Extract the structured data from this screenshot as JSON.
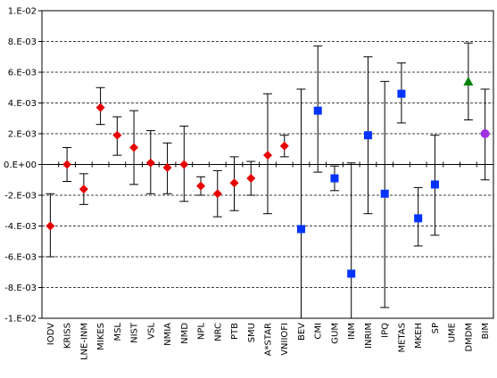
{
  "chart_data": {
    "type": "scatter",
    "ylim": [
      -0.01,
      0.01
    ],
    "y_ticks": [
      {
        "value": 0.01,
        "label": "1.E-02"
      },
      {
        "value": 0.008,
        "label": "8.E-03"
      },
      {
        "value": 0.006,
        "label": "6.E-03"
      },
      {
        "value": 0.004,
        "label": "4.E-03"
      },
      {
        "value": 0.002,
        "label": "2.E-03"
      },
      {
        "value": 0.0,
        "label": "0.E+00"
      },
      {
        "value": -0.002,
        "label": "-2.E-03"
      },
      {
        "value": -0.004,
        "label": "-4.E-03"
      },
      {
        "value": -0.006,
        "label": "-6.E-03"
      },
      {
        "value": -0.008,
        "label": "-8.E-03"
      },
      {
        "value": -0.01,
        "label": "-1.E-02"
      }
    ],
    "grid": "horizontal dashed",
    "legend": "none",
    "categories": [
      "IODV",
      "KRISS",
      "LNE-INM",
      "MIKES",
      "MSL",
      "NIST",
      "VSL",
      "NMIA",
      "NMD",
      "NPL",
      "NRC",
      "PTB",
      "SMU",
      "A*STAR",
      "VNIIOFI",
      "BEV",
      "CMI",
      "GUM",
      "INM",
      "INRIM",
      "IPQ",
      "METAS",
      "MKEH",
      "SP",
      "UME",
      "DMDM",
      "BIM"
    ],
    "series": [
      {
        "marker": "diamond",
        "color": "#e60000",
        "points": [
          {
            "cat": "IODV",
            "y": -0.004,
            "low": -0.006,
            "high": -0.0019
          },
          {
            "cat": "KRISS",
            "y": 0.0,
            "low": -0.0011,
            "high": 0.0011
          },
          {
            "cat": "LNE-INM",
            "y": -0.0016,
            "low": -0.0026,
            "high": -0.0006
          },
          {
            "cat": "MIKES",
            "y": 0.0037,
            "low": 0.0026,
            "high": 0.005
          },
          {
            "cat": "MSL",
            "y": 0.0019,
            "low": 0.0006,
            "high": 0.0031
          },
          {
            "cat": "NIST",
            "y": 0.0011,
            "low": -0.0013,
            "high": 0.0035
          },
          {
            "cat": "VSL",
            "y": 0.0001,
            "low": -0.0019,
            "high": 0.0022
          },
          {
            "cat": "NMIA",
            "y": -0.0002,
            "low": -0.0019,
            "high": 0.0014
          },
          {
            "cat": "NMD",
            "y": 0.0,
            "low": -0.0024,
            "high": 0.0025
          },
          {
            "cat": "NPL",
            "y": -0.0014,
            "low": -0.002,
            "high": -0.0008
          },
          {
            "cat": "NRC",
            "y": -0.0019,
            "low": -0.0034,
            "high": -0.0004
          },
          {
            "cat": "PTB",
            "y": -0.0012,
            "low": -0.003,
            "high": 0.0005
          },
          {
            "cat": "SMU",
            "y": -0.0009,
            "low": -0.002,
            "high": 0.0002
          },
          {
            "cat": "A*STAR",
            "y": 0.0006,
            "low": -0.0032,
            "high": 0.0046
          },
          {
            "cat": "VNIIOFI",
            "y": 0.0012,
            "low": 0.0005,
            "high": 0.0019
          }
        ]
      },
      {
        "marker": "square",
        "color": "#0033ff",
        "points": [
          {
            "cat": "BEV",
            "y": -0.0042,
            "low": -0.01,
            "high": 0.0049
          },
          {
            "cat": "CMI",
            "y": 0.0035,
            "low": -0.0005,
            "high": 0.0077
          },
          {
            "cat": "GUM",
            "y": -0.0009,
            "low": -0.0017,
            "high": -0.0001
          },
          {
            "cat": "INM",
            "y": -0.0071,
            "low": -0.01,
            "high": 0.0001
          },
          {
            "cat": "INRIM",
            "y": 0.0019,
            "low": -0.0032,
            "high": 0.007
          },
          {
            "cat": "IPQ",
            "y": -0.0019,
            "low": -0.0093,
            "high": 0.0054
          },
          {
            "cat": "METAS",
            "y": 0.0046,
            "low": 0.0027,
            "high": 0.0066
          },
          {
            "cat": "MKEH",
            "y": -0.0035,
            "low": -0.0053,
            "high": -0.0015
          },
          {
            "cat": "SP",
            "y": -0.0013,
            "low": -0.0046,
            "high": 0.0019
          }
        ]
      },
      {
        "marker": "triangle",
        "color": "#008000",
        "points": [
          {
            "cat": "DMDM",
            "y": 0.0054,
            "low": 0.0029,
            "high": 0.0079
          }
        ]
      },
      {
        "marker": "circle",
        "color": "#a030e0",
        "points": [
          {
            "cat": "BIM",
            "y": 0.002,
            "low": -0.001,
            "high": 0.0049
          }
        ]
      }
    ]
  }
}
